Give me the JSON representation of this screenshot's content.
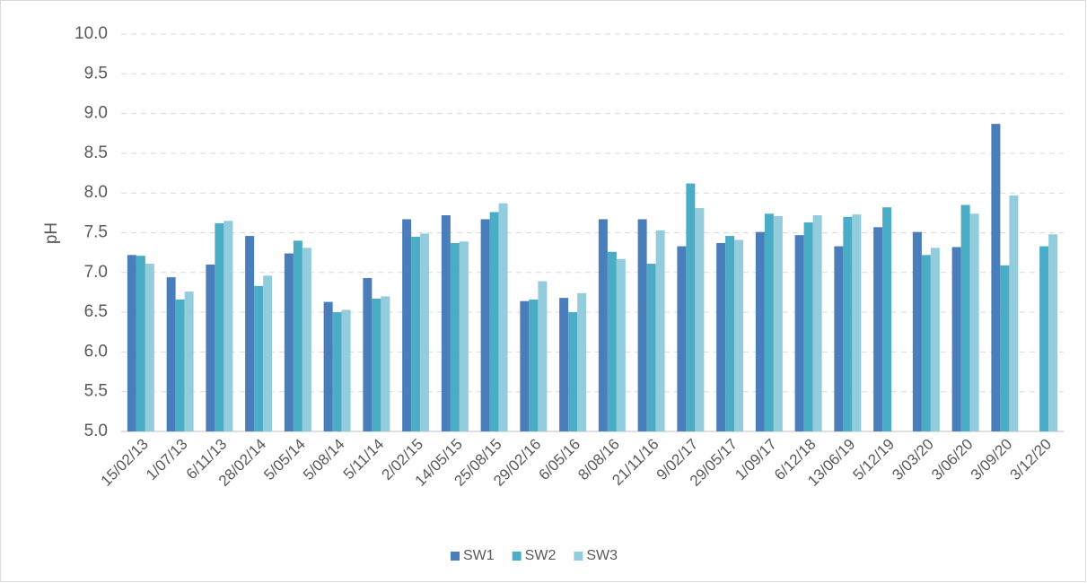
{
  "chart_data": {
    "type": "bar",
    "ylabel": "pH",
    "categories": [
      "15/02/13",
      "1/07/13",
      "6/11/13",
      "28/02/14",
      "5/05/14",
      "5/08/14",
      "5/11/14",
      "2/02/15",
      "14/05/15",
      "25/08/15",
      "29/02/16",
      "6/05/16",
      "8/08/16",
      "21/11/16",
      "9/02/17",
      "29/05/17",
      "1/09/17",
      "6/12/18",
      "13/06/19",
      "5/12/19",
      "3/03/20",
      "3/06/20",
      "3/09/20",
      "3/12/20"
    ],
    "series": [
      {
        "name": "SW1",
        "color": "#4a7ebb",
        "values": [
          7.22,
          6.94,
          7.1,
          7.46,
          7.24,
          6.63,
          6.93,
          7.67,
          7.72,
          7.67,
          6.64,
          6.68,
          7.67,
          7.67,
          7.33,
          7.37,
          7.51,
          7.47,
          7.33,
          7.57,
          7.51,
          7.32,
          8.87,
          null
        ]
      },
      {
        "name": "SW2",
        "color": "#4bacc6",
        "values": [
          7.21,
          6.66,
          7.62,
          6.83,
          7.4,
          6.5,
          6.67,
          7.45,
          7.37,
          7.76,
          6.66,
          6.5,
          7.26,
          7.11,
          8.12,
          7.46,
          7.74,
          7.63,
          7.7,
          7.82,
          7.22,
          7.85,
          7.09,
          7.33
        ]
      },
      {
        "name": "SW3",
        "color": "#93cddd",
        "values": [
          7.11,
          6.76,
          7.65,
          6.96,
          7.31,
          6.53,
          6.7,
          7.49,
          7.39,
          7.87,
          6.89,
          6.74,
          7.17,
          7.53,
          7.81,
          7.41,
          7.71,
          7.72,
          7.73,
          null,
          7.31,
          7.74,
          7.97,
          7.48
        ]
      }
    ],
    "ylim": [
      5,
      10
    ],
    "yticks": [
      {
        "value": 5,
        "label": "5.0"
      },
      5.5,
      {
        "value": 6,
        "label": "6.0"
      },
      6.5,
      {
        "value": 7,
        "label": "7.0"
      },
      7.5,
      {
        "value": 8,
        "label": "8.0"
      },
      8.5,
      {
        "value": 9,
        "label": "9.0"
      },
      9.5,
      {
        "value": 10,
        "label": "10.0"
      }
    ],
    "grid": true,
    "legend": "bottom"
  }
}
